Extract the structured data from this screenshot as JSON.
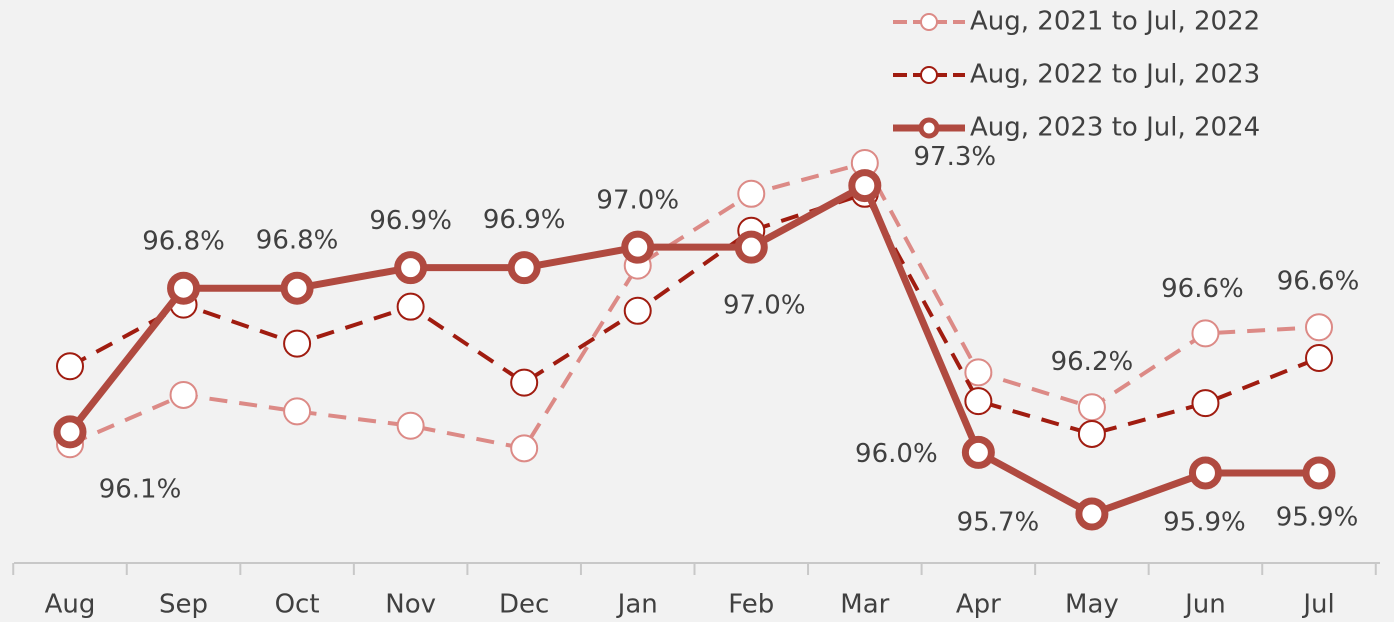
{
  "chart_data": {
    "type": "line",
    "categories": [
      "Aug",
      "Sep",
      "Oct",
      "Nov",
      "Dec",
      "Jan",
      "Feb",
      "Mar",
      "Apr",
      "May",
      "Jun",
      "Jul"
    ],
    "series": [
      {
        "name": "Aug, 2021 to Jul, 2022",
        "color": "#dc8a86",
        "values": [
          96.04,
          96.28,
          96.2,
          96.13,
          96.02,
          96.91,
          97.26,
          97.41,
          96.39,
          96.22,
          96.58,
          96.61
        ],
        "value_labels": [
          null,
          null,
          null,
          null,
          null,
          null,
          null,
          null,
          null,
          "96.2%",
          "96.6%",
          "96.6%"
        ]
      },
      {
        "name": "Aug, 2022 to Jul, 2023",
        "color": "#a01c10",
        "values": [
          96.42,
          96.72,
          96.53,
          96.71,
          96.34,
          96.69,
          97.08,
          97.26,
          96.25,
          96.09,
          96.24,
          96.46
        ]
      },
      {
        "name": "Aug, 2023 to Jul, 2024",
        "color": "#b04a40",
        "values": [
          96.1,
          96.8,
          96.8,
          96.9,
          96.9,
          97.0,
          97.0,
          97.3,
          96.0,
          95.7,
          95.9,
          95.9
        ],
        "value_labels": [
          "96.1%",
          "96.8%",
          "96.8%",
          "96.9%",
          "96.9%",
          "97.0%",
          "97.0%",
          "97.3%",
          "96.0%",
          "95.7%",
          "95.9%",
          "95.9%"
        ]
      }
    ]
  }
}
